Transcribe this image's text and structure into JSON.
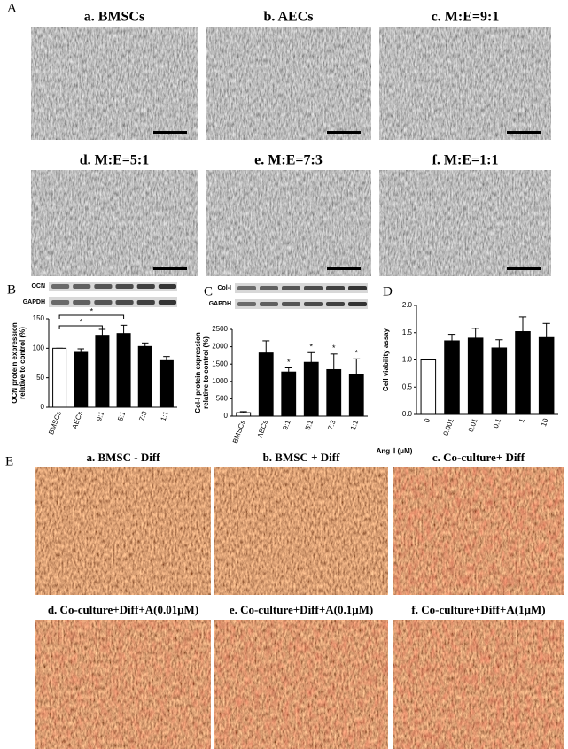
{
  "panel_labels": [
    "A",
    "B",
    "C",
    "D",
    "E"
  ],
  "panel_a": {
    "images": [
      "a. BMSCs",
      "b. AECs",
      "c. M:E=9:1",
      "d. M:E=5:1",
      "e. M:E=7:3",
      "f. M:E=1:1"
    ]
  },
  "chart_data": [
    {
      "type": "bar",
      "ylabel": [
        "OCN protein expression",
        "relative to control (%)"
      ],
      "blot_labels": [
        "OCN",
        "GAPDH"
      ],
      "categories": [
        "BMSCs",
        "AECs",
        "9:1",
        "5:1",
        "7:3",
        "1:1"
      ],
      "values": [
        100,
        93,
        122,
        125,
        103,
        79
      ],
      "errors": [
        0,
        6,
        10,
        14,
        6,
        7
      ],
      "colors": [
        "#ffffff",
        "#000000",
        "#000000",
        "#000000",
        "#000000",
        "#000000"
      ],
      "ylim": [
        0,
        150
      ],
      "yticks": [
        0,
        50,
        100,
        150
      ],
      "brackets": [
        {
          "from": "BMSCs",
          "to": "5:1",
          "label": "*"
        },
        {
          "from": "BMSCs",
          "to": "9:1",
          "label": "*"
        }
      ]
    },
    {
      "type": "bar",
      "ylabel": [
        "Col-I protein expression",
        "relative to control (%)"
      ],
      "blot_labels": [
        "Col-I",
        "GAPDH"
      ],
      "categories": [
        "BMSCs",
        "AECs",
        "9:1",
        "5:1",
        "7:3",
        "1:1"
      ],
      "values": [
        100,
        1820,
        1270,
        1550,
        1340,
        1200
      ],
      "errors": [
        30,
        350,
        120,
        280,
        450,
        450
      ],
      "colors": [
        "#ffffff",
        "#000000",
        "#000000",
        "#000000",
        "#000000",
        "#000000"
      ],
      "ylim": [
        0,
        2500
      ],
      "yticks": [
        0,
        500,
        1000,
        1500,
        2000,
        2500
      ],
      "annotations": [
        {
          "category": "9:1",
          "label": "*"
        },
        {
          "category": "5:1",
          "label": "*"
        },
        {
          "category": "7:3",
          "label": "*"
        },
        {
          "category": "1:1",
          "label": "*"
        }
      ]
    },
    {
      "type": "bar",
      "ylabel": [
        "Cell viability assay"
      ],
      "xlabel": "Ang Ⅱ (μM)",
      "categories": [
        "0",
        "0.001",
        "0.01",
        "0.1",
        "1",
        "10"
      ],
      "values": [
        1.0,
        1.35,
        1.4,
        1.22,
        1.52,
        1.41
      ],
      "errors": [
        0,
        0.12,
        0.18,
        0.15,
        0.27,
        0.26
      ],
      "colors": [
        "#ffffff",
        "#000000",
        "#000000",
        "#000000",
        "#000000",
        "#000000"
      ],
      "ylim": [
        0,
        2.0
      ],
      "yticks": [
        {
          "value": 0,
          "label": "0.0"
        },
        0.5,
        {
          "value": 1,
          "label": "1.0"
        },
        1.5,
        {
          "value": 2,
          "label": "2.0"
        }
      ]
    }
  ],
  "panel_e": {
    "images": [
      "a. BMSC - Diff",
      "b. BMSC + Diff",
      "c. Co-culture+ Diff",
      "d. Co-culture+Diff+A(0.01μM)",
      "e. Co-culture+Diff+A(0.1μM)",
      "f. Co-culture+Diff+A(1μM)"
    ]
  }
}
